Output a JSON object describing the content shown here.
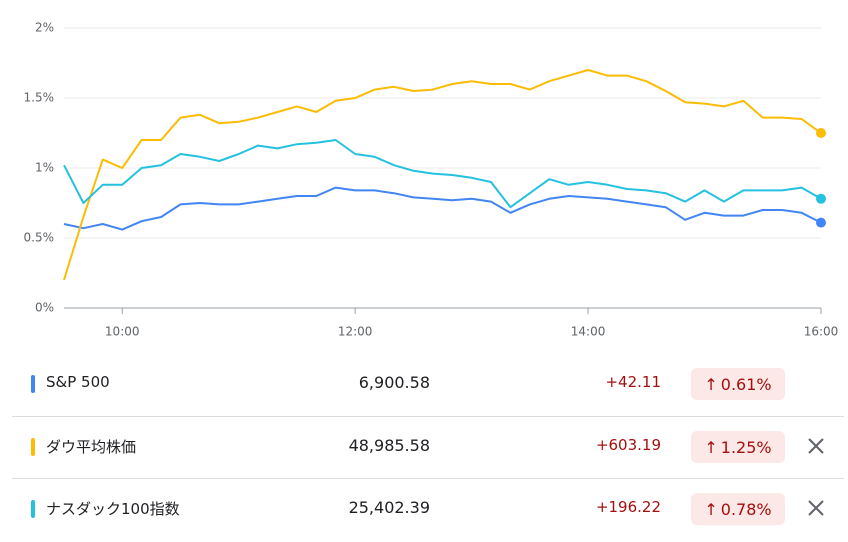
{
  "chart_data": {
    "type": "line",
    "x": [
      "09:30",
      "09:40",
      "09:50",
      "10:00",
      "10:10",
      "10:20",
      "10:30",
      "10:40",
      "10:50",
      "11:00",
      "11:10",
      "11:20",
      "11:30",
      "11:40",
      "11:50",
      "12:00",
      "12:10",
      "12:20",
      "12:30",
      "12:40",
      "12:50",
      "13:00",
      "13:10",
      "13:20",
      "13:30",
      "13:40",
      "13:50",
      "14:00",
      "14:10",
      "14:20",
      "14:30",
      "14:40",
      "14:50",
      "15:00",
      "15:10",
      "15:20",
      "15:30",
      "15:40",
      "15:50",
      "16:00"
    ],
    "xlim": [
      "09:30",
      "16:00"
    ],
    "xticks": [
      "10:00",
      "12:00",
      "14:00",
      "16:00"
    ],
    "ylim": [
      0,
      2
    ],
    "yticks": [
      {
        "value": 0,
        "label": "0%"
      },
      {
        "value": 0.5,
        "label": "0.5%"
      },
      {
        "value": 1,
        "label": "1%"
      },
      {
        "value": 1.5,
        "label": "1.5%"
      },
      {
        "value": 2,
        "label": "2%"
      }
    ],
    "grid": true,
    "series": [
      {
        "name": "S&P 500",
        "color": "#4285f4",
        "values": [
          0.6,
          0.57,
          0.6,
          0.56,
          0.62,
          0.65,
          0.74,
          0.75,
          0.74,
          0.74,
          0.76,
          0.78,
          0.8,
          0.8,
          0.86,
          0.84,
          0.84,
          0.82,
          0.79,
          0.78,
          0.77,
          0.78,
          0.76,
          0.68,
          0.74,
          0.78,
          0.8,
          0.79,
          0.78,
          0.76,
          0.74,
          0.72,
          0.63,
          0.68,
          0.66,
          0.66,
          0.7,
          0.7,
          0.68,
          0.61
        ]
      },
      {
        "name": "ダウ平均株価",
        "color": "#fbbc04",
        "values": [
          0.2,
          0.65,
          1.06,
          1.0,
          1.2,
          1.2,
          1.36,
          1.38,
          1.32,
          1.33,
          1.36,
          1.4,
          1.44,
          1.4,
          1.48,
          1.5,
          1.56,
          1.58,
          1.55,
          1.56,
          1.6,
          1.62,
          1.6,
          1.6,
          1.56,
          1.62,
          1.66,
          1.7,
          1.66,
          1.66,
          1.62,
          1.55,
          1.47,
          1.46,
          1.44,
          1.48,
          1.36,
          1.36,
          1.35,
          1.25
        ]
      },
      {
        "name": "ナスダック100指数",
        "color": "#24c1e0",
        "values": [
          1.02,
          0.75,
          0.88,
          0.88,
          1.0,
          1.02,
          1.1,
          1.08,
          1.05,
          1.1,
          1.16,
          1.14,
          1.17,
          1.18,
          1.2,
          1.1,
          1.08,
          1.02,
          0.98,
          0.96,
          0.95,
          0.93,
          0.9,
          0.72,
          0.82,
          0.92,
          0.88,
          0.9,
          0.88,
          0.85,
          0.84,
          0.82,
          0.76,
          0.84,
          0.76,
          0.84,
          0.84,
          0.84,
          0.86,
          0.78
        ]
      }
    ]
  },
  "table": {
    "rows": [
      {
        "price": "6,900.58",
        "change": "+42.11",
        "percent": "0.61%"
      },
      {
        "price": "48,985.58",
        "change": "+603.19",
        "percent": "1.25%"
      },
      {
        "price": "25,402.39",
        "change": "+196.22",
        "percent": "0.78%"
      }
    ]
  }
}
